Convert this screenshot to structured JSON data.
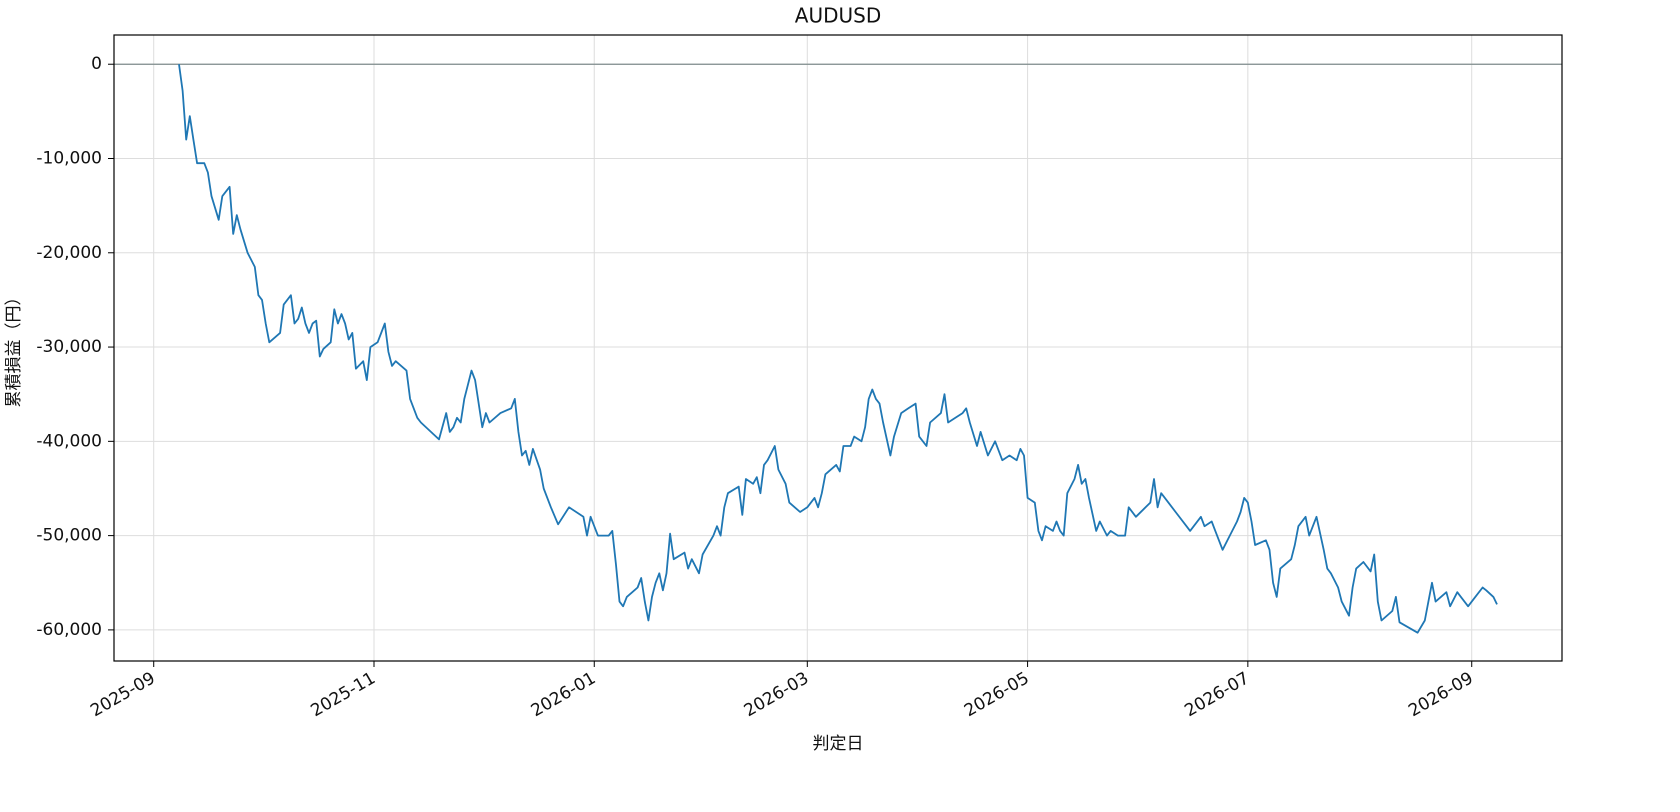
{
  "chart_data": {
    "type": "line",
    "title": "AUDUSD",
    "xlabel": "判定日",
    "ylabel": "累積損益（円）",
    "color": "#1f77b4",
    "grid": true,
    "hlines": [
      0
    ],
    "xlim": [
      "2025-08-21",
      "2026-09-26"
    ],
    "xticks": [
      "2025-09",
      "2025-11",
      "2026-01",
      "2026-03",
      "2026-05",
      "2026-07",
      "2026-09"
    ],
    "ylim": [
      -63300,
      3100
    ],
    "yticks": [
      0,
      {
        "value": -10000,
        "label": "-10,000"
      },
      {
        "value": -20000,
        "label": "-20,000"
      },
      {
        "value": -30000,
        "label": "-30,000"
      },
      {
        "value": -40000,
        "label": "-40,000"
      },
      {
        "value": -50000,
        "label": "-50,000"
      },
      {
        "value": -60000,
        "label": "-60,000"
      }
    ],
    "x": [
      "2025-09-08",
      "2025-09-09",
      "2025-09-10",
      "2025-09-11",
      "2025-09-12",
      "2025-09-13",
      "2025-09-15",
      "2025-09-16",
      "2025-09-17",
      "2025-09-19",
      "2025-09-20",
      "2025-09-22",
      "2025-09-23",
      "2025-09-24",
      "2025-09-25",
      "2025-09-27",
      "2025-09-29",
      "2025-09-30",
      "2025-10-01",
      "2025-10-02",
      "2025-10-03",
      "2025-10-06",
      "2025-10-07",
      "2025-10-09",
      "2025-10-10",
      "2025-10-11",
      "2025-10-12",
      "2025-10-13",
      "2025-10-14",
      "2025-10-15",
      "2025-10-16",
      "2025-10-17",
      "2025-10-18",
      "2025-10-20",
      "2025-10-21",
      "2025-10-22",
      "2025-10-23",
      "2025-10-24",
      "2025-10-25",
      "2025-10-26",
      "2025-10-27",
      "2025-10-29",
      "2025-10-30",
      "2025-10-31",
      "2025-11-02",
      "2025-11-04",
      "2025-11-05",
      "2025-11-06",
      "2025-11-07",
      "2025-11-10",
      "2025-11-11",
      "2025-11-13",
      "2025-11-14",
      "2025-11-19",
      "2025-11-21",
      "2025-11-22",
      "2025-11-23",
      "2025-11-24",
      "2025-11-25",
      "2025-11-26",
      "2025-11-27",
      "2025-11-28",
      "2025-11-29",
      "2025-12-01",
      "2025-12-02",
      "2025-12-03",
      "2025-12-06",
      "2025-12-09",
      "2025-12-10",
      "2025-12-11",
      "2025-12-12",
      "2025-12-13",
      "2025-12-14",
      "2025-12-15",
      "2025-12-17",
      "2025-12-18",
      "2025-12-20",
      "2025-12-22",
      "2025-12-25",
      "2025-12-29",
      "2025-12-30",
      "2025-12-31",
      "2026-01-02",
      "2026-01-05",
      "2026-01-06",
      "2026-01-07",
      "2026-01-08",
      "2026-01-09",
      "2026-01-10",
      "2026-01-13",
      "2026-01-14",
      "2026-01-15",
      "2026-01-16",
      "2026-01-17",
      "2026-01-18",
      "2026-01-19",
      "2026-01-20",
      "2026-01-21",
      "2026-01-22",
      "2026-01-23",
      "2026-01-26",
      "2026-01-27",
      "2026-01-28",
      "2026-01-30",
      "2026-01-31",
      "2026-02-03",
      "2026-02-04",
      "2026-02-05",
      "2026-02-06",
      "2026-02-07",
      "2026-02-10",
      "2026-02-11",
      "2026-02-12",
      "2026-02-14",
      "2026-02-15",
      "2026-02-16",
      "2026-02-17",
      "2026-02-18",
      "2026-02-20",
      "2026-02-21",
      "2026-02-23",
      "2026-02-24",
      "2026-02-27",
      "2026-03-01",
      "2026-03-03",
      "2026-03-04",
      "2026-03-05",
      "2026-03-06",
      "2026-03-09",
      "2026-03-10",
      "2026-03-11",
      "2026-03-13",
      "2026-03-14",
      "2026-03-16",
      "2026-03-17",
      "2026-03-18",
      "2026-03-19",
      "2026-03-20",
      "2026-03-21",
      "2026-03-22",
      "2026-03-24",
      "2026-03-25",
      "2026-03-27",
      "2026-03-29",
      "2026-03-31",
      "2026-04-01",
      "2026-04-03",
      "2026-04-04",
      "2026-04-07",
      "2026-04-08",
      "2026-04-09",
      "2026-04-11",
      "2026-04-13",
      "2026-04-14",
      "2026-04-15",
      "2026-04-17",
      "2026-04-18",
      "2026-04-20",
      "2026-04-22",
      "2026-04-24",
      "2026-04-26",
      "2026-04-28",
      "2026-04-29",
      "2026-04-30",
      "2026-05-01",
      "2026-05-03",
      "2026-05-04",
      "2026-05-05",
      "2026-05-06",
      "2026-05-08",
      "2026-05-09",
      "2026-05-10",
      "2026-05-11",
      "2026-05-12",
      "2026-05-14",
      "2026-05-15",
      "2026-05-16",
      "2026-05-17",
      "2026-05-18",
      "2026-05-20",
      "2026-05-21",
      "2026-05-23",
      "2026-05-24",
      "2026-05-26",
      "2026-05-28",
      "2026-05-29",
      "2026-05-31",
      "2026-06-04",
      "2026-06-05",
      "2026-06-06",
      "2026-06-07",
      "2026-06-09",
      "2026-06-11",
      "2026-06-14",
      "2026-06-15",
      "2026-06-18",
      "2026-06-19",
      "2026-06-21",
      "2026-06-22",
      "2026-06-24",
      "2026-06-26",
      "2026-06-28",
      "2026-06-29",
      "2026-06-30",
      "2026-07-01",
      "2026-07-02",
      "2026-07-03",
      "2026-07-06",
      "2026-07-07",
      "2026-07-08",
      "2026-07-09",
      "2026-07-10",
      "2026-07-13",
      "2026-07-14",
      "2026-07-15",
      "2026-07-17",
      "2026-07-18",
      "2026-07-20",
      "2026-07-22",
      "2026-07-23",
      "2026-07-24",
      "2026-07-26",
      "2026-07-27",
      "2026-07-29",
      "2026-07-30",
      "2026-07-31",
      "2026-08-02",
      "2026-08-04",
      "2026-08-05",
      "2026-08-06",
      "2026-08-07",
      "2026-08-10",
      "2026-08-11",
      "2026-08-12",
      "2026-08-17",
      "2026-08-19",
      "2026-08-20",
      "2026-08-21",
      "2026-08-22",
      "2026-08-25",
      "2026-08-26",
      "2026-08-28",
      "2026-08-29",
      "2026-08-31",
      "2026-09-02",
      "2026-09-04",
      "2026-09-05",
      "2026-09-07",
      "2026-09-08"
    ],
    "values": [
      0,
      -2800,
      -8000,
      -5500,
      -8000,
      -10500,
      -10500,
      -11500,
      -14000,
      -16500,
      -14000,
      -13000,
      -18000,
      -16000,
      -17500,
      -20000,
      -21500,
      -24500,
      -25000,
      -27500,
      -29500,
      -28500,
      -25500,
      -24500,
      -27500,
      -27000,
      -25800,
      -27500,
      -28500,
      -27500,
      -27200,
      -31000,
      -30200,
      -29500,
      -26000,
      -27500,
      -26500,
      -27500,
      -29200,
      -28500,
      -32300,
      -31500,
      -33500,
      -30000,
      -29500,
      -27500,
      -30500,
      -32000,
      -31500,
      -32500,
      -35500,
      -37500,
      -38000,
      -39800,
      -37000,
      -39000,
      -38500,
      -37500,
      -38000,
      -35500,
      -34000,
      -32500,
      -33500,
      -38500,
      -37000,
      -38000,
      -37000,
      -36500,
      -35500,
      -39000,
      -41500,
      -41000,
      -42500,
      -40800,
      -43000,
      -45000,
      -47000,
      -48800,
      -47000,
      -48000,
      -50000,
      -48000,
      -50000,
      -50000,
      -49500,
      -53000,
      -57000,
      -57500,
      -56500,
      -55500,
      -54500,
      -57000,
      -59000,
      -56500,
      -55000,
      -54000,
      -55800,
      -54000,
      -49800,
      -52500,
      -51800,
      -53500,
      -52500,
      -54000,
      -52000,
      -50000,
      -49000,
      -50000,
      -47000,
      -45500,
      -44800,
      -47800,
      -44000,
      -44500,
      -43800,
      -45500,
      -42500,
      -42000,
      -40500,
      -43000,
      -44500,
      -46500,
      -47500,
      -47000,
      -46000,
      -47000,
      -45500,
      -43500,
      -42500,
      -43200,
      -40500,
      -40500,
      -39500,
      -40000,
      -38500,
      -35500,
      -34500,
      -35500,
      -36000,
      -38000,
      -41500,
      -39500,
      -37000,
      -36500,
      -36000,
      -39500,
      -40500,
      -38000,
      -37000,
      -35000,
      -38000,
      -37500,
      -37000,
      -36500,
      -38000,
      -40500,
      -39000,
      -41500,
      -40000,
      -42000,
      -41500,
      -42000,
      -40800,
      -41500,
      -46000,
      -46500,
      -49500,
      -50500,
      -49000,
      -49500,
      -48500,
      -49500,
      -50000,
      -45500,
      -44000,
      -42500,
      -44500,
      -44000,
      -46000,
      -49500,
      -48500,
      -50000,
      -49500,
      -50000,
      -50000,
      -47000,
      -48000,
      -46500,
      -44000,
      -47000,
      -45500,
      -46500,
      -47500,
      -49000,
      -49500,
      -48000,
      -49000,
      -48500,
      -49500,
      -51500,
      -50000,
      -48500,
      -47500,
      -46000,
      -46500,
      -48500,
      -51000,
      -50500,
      -51500,
      -55000,
      -56500,
      -53500,
      -52500,
      -51000,
      -49000,
      -48000,
      -50000,
      -48000,
      -51500,
      -53500,
      -54000,
      -55500,
      -57000,
      -58500,
      -55500,
      -53500,
      -52800,
      -53800,
      -52000,
      -57000,
      -59000,
      -58000,
      -56500,
      -59200,
      -60300,
      -59000,
      -57000,
      -55000,
      -57000,
      -56000,
      -57500,
      -56000,
      -56500,
      -57500,
      -56500,
      -55500,
      -55800,
      -56500,
      -57300
    ]
  }
}
